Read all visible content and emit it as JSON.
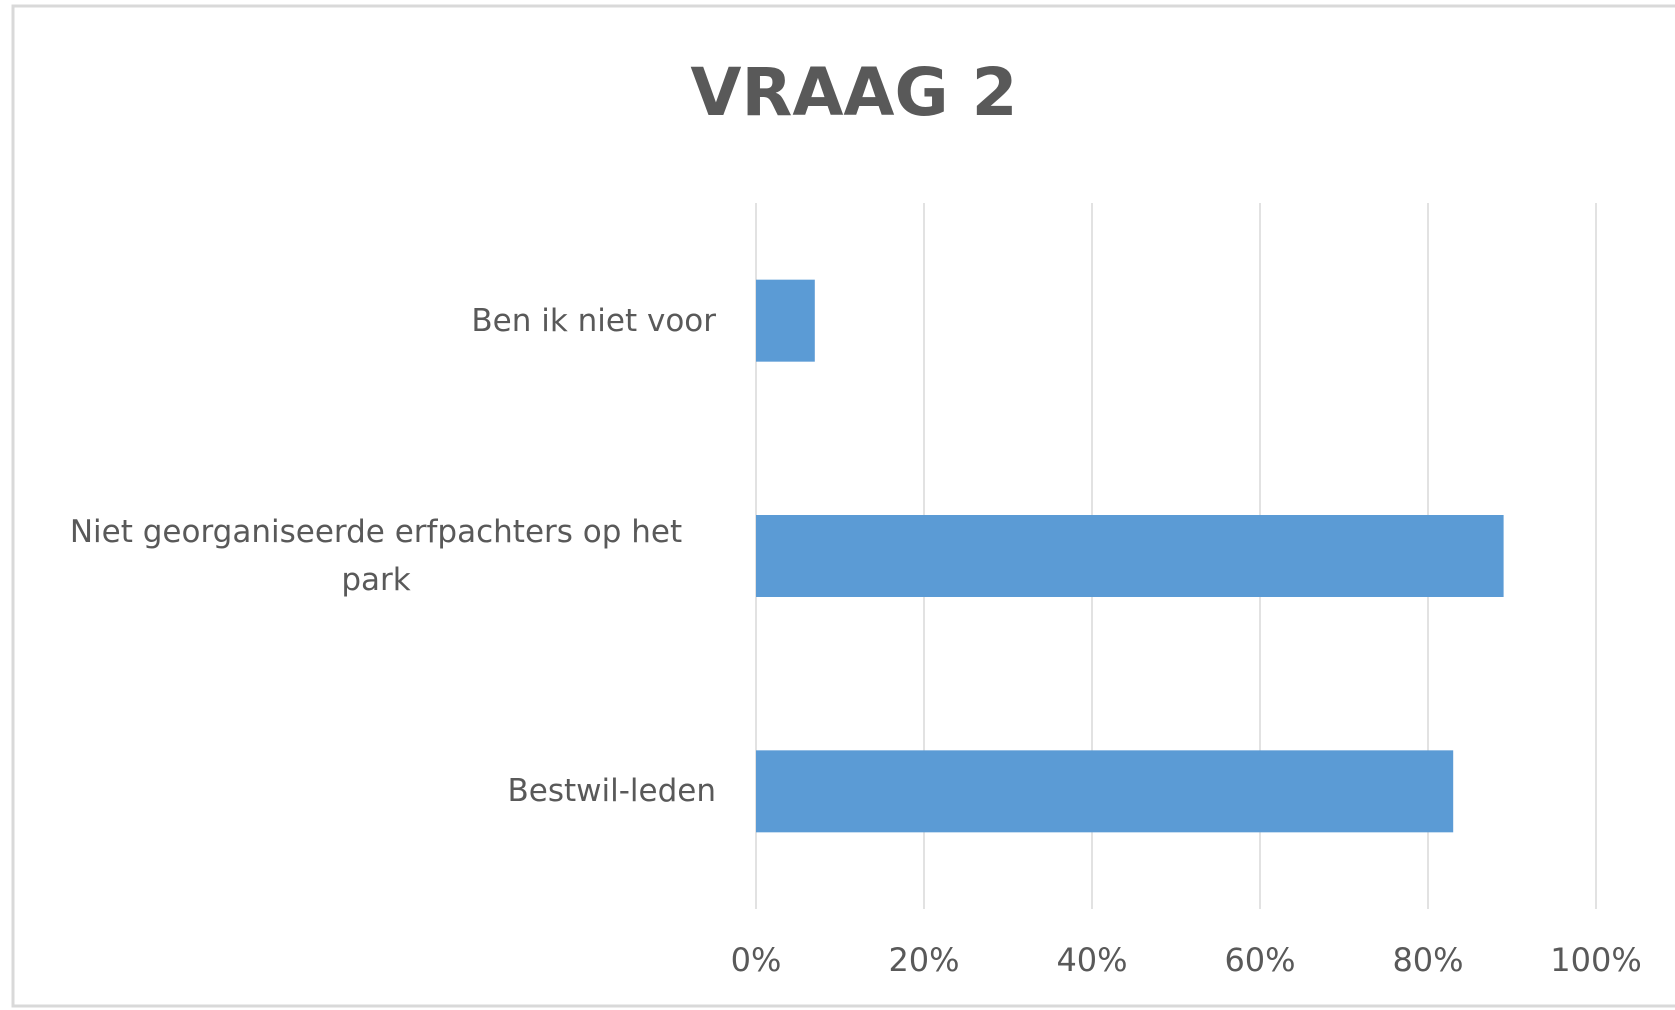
{
  "chart_data": {
    "type": "bar",
    "orientation": "horizontal",
    "title": "VRAAG 2",
    "categories": [
      "Ben ik niet voor",
      "Niet georganiseerde erfpachters op het park",
      "Bestwil-leden"
    ],
    "values": [
      7,
      89,
      83
    ],
    "color": "#5b9bd5",
    "xlim": [
      0,
      100
    ],
    "xticks": [
      {
        "value": 0,
        "label": "0%"
      },
      {
        "value": 20,
        "label": "20%"
      },
      {
        "value": 40,
        "label": "40%"
      },
      {
        "value": 60,
        "label": "60%"
      },
      {
        "value": 80,
        "label": "80%"
      },
      {
        "value": 100,
        "label": "100%"
      }
    ],
    "grid": true
  }
}
